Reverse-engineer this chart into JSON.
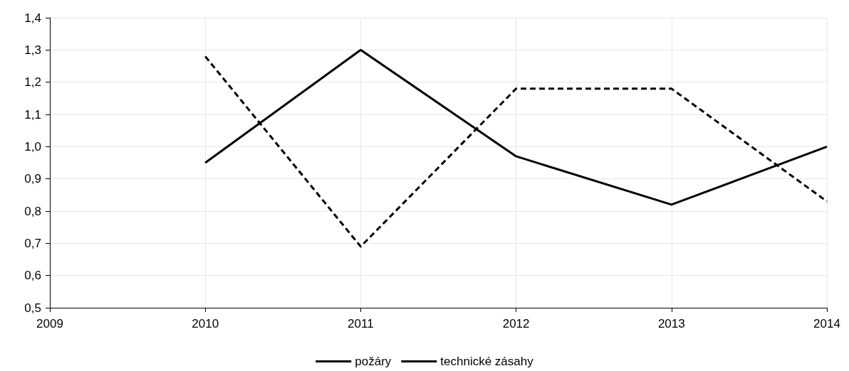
{
  "chart_data": {
    "type": "line",
    "x": [
      2010,
      2011,
      2012,
      2013,
      2014
    ],
    "series": [
      {
        "name": "požáry",
        "color": "#000000",
        "line_style": "solid",
        "values": [
          0.95,
          1.3,
          0.97,
          0.82,
          1.0
        ]
      },
      {
        "name": "technické zásahy",
        "color": "#000000",
        "line_style": "dashed",
        "values": [
          1.28,
          0.69,
          1.18,
          1.18,
          0.83
        ]
      }
    ],
    "xlim": [
      2009,
      2014
    ],
    "xticks": [
      2009,
      2010,
      2011,
      2012,
      2013,
      2014
    ],
    "ylim": [
      0.5,
      1.4
    ],
    "yticks": [
      {
        "value": 0.5,
        "label": "0,5"
      },
      {
        "value": 0.6,
        "label": "0,6"
      },
      {
        "value": 0.7,
        "label": "0,7"
      },
      {
        "value": 0.8,
        "label": "0,8"
      },
      {
        "value": 0.9,
        "label": "0,9"
      },
      {
        "value": 1.0,
        "label": "1,0"
      },
      {
        "value": 1.1,
        "label": "1,1"
      },
      {
        "value": 1.2,
        "label": "1,2"
      },
      {
        "value": 1.3,
        "label": "1,3"
      },
      {
        "value": 1.4,
        "label": "1,4"
      }
    ],
    "grid": true,
    "legend": "bottom",
    "marker": "none"
  }
}
